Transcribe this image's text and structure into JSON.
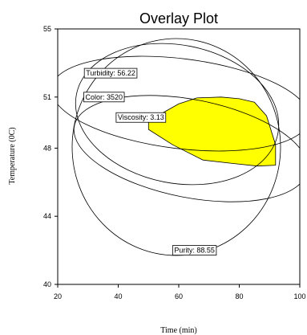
{
  "chart_data": {
    "type": "overlay-contour",
    "title": "Overlay Plot",
    "xlabel": "Time  (min)",
    "ylabel": "Temperature (0C)",
    "xlim": [
      20,
      100
    ],
    "ylim": [
      40,
      55
    ],
    "xticks": [
      20,
      40,
      60,
      80,
      100
    ],
    "yticks": [
      40,
      44,
      48,
      51,
      55
    ],
    "colors": {
      "feasible_region": "#ffff00",
      "contour": "#000000",
      "frame": "#000000"
    },
    "feasible_region": {
      "boundary": [
        [
          50,
          49.5
        ],
        [
          55,
          50.1
        ],
        [
          60,
          50.6
        ],
        [
          66,
          50.95
        ],
        [
          74,
          51.0
        ],
        [
          80,
          50.9
        ],
        [
          85,
          50.7
        ],
        [
          89,
          49.9
        ],
        [
          92,
          48.2
        ],
        [
          92,
          47.0
        ],
        [
          86,
          46.95
        ],
        [
          78,
          47.1
        ],
        [
          68,
          47.3
        ],
        [
          58,
          48.2
        ],
        [
          50,
          49.1
        ]
      ]
    },
    "contours": [
      {
        "label": "Turbidity: 56.22",
        "label_at": [
          37.5,
          52.4
        ]
      },
      {
        "label": "Color: 3520",
        "label_at": [
          35.3,
          51.0
        ]
      },
      {
        "label": "Viscosity: 3.13",
        "label_at": [
          47.5,
          49.8
        ]
      },
      {
        "label": "Purity: 88.55",
        "label_at": [
          65.2,
          42.0
        ]
      }
    ]
  }
}
